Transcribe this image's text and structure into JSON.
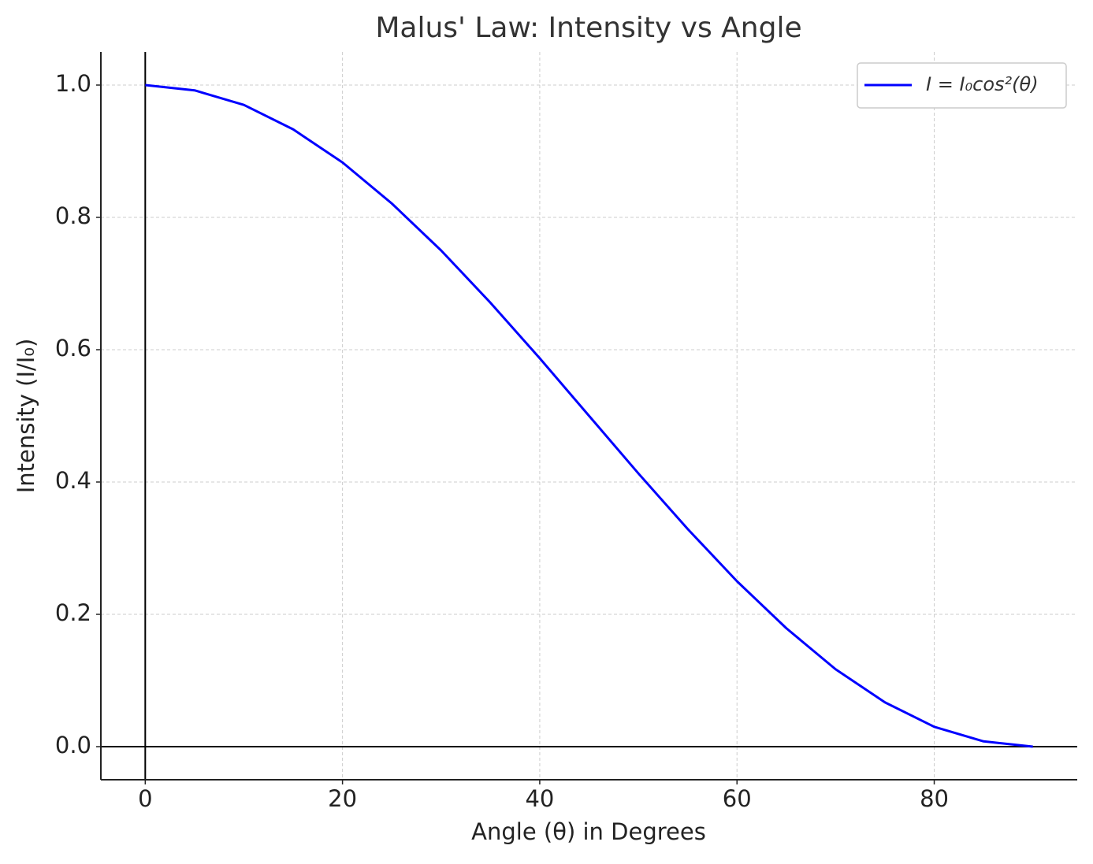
{
  "chart_data": {
    "type": "line",
    "title": "Malus' Law: Intensity vs Angle",
    "x_label": "Angle (θ) in Degrees",
    "y_label": "Intensity (I/I₀)",
    "x": [
      0,
      5,
      10,
      15,
      20,
      25,
      30,
      35,
      40,
      45,
      50,
      55,
      60,
      65,
      70,
      75,
      80,
      85,
      90
    ],
    "series": [
      {
        "name": "I = I₀cos²(θ)",
        "color": "#0000ff",
        "values": [
          1,
          0.992,
          0.97,
          0.933,
          0.883,
          0.821,
          0.75,
          0.671,
          0.587,
          0.5,
          0.413,
          0.329,
          0.25,
          0.179,
          0.117,
          0.067,
          0.03,
          0.008,
          0
        ]
      }
    ],
    "xlim": [
      -4.5,
      94.5
    ],
    "ylim": [
      -0.05,
      1.05
    ],
    "xticks": [
      0,
      20,
      40,
      60,
      80
    ],
    "yticks": [
      {
        "value": 0,
        "label": "0.0"
      },
      {
        "value": 0.2,
        "label": "0.2"
      },
      {
        "value": 0.4,
        "label": "0.4"
      },
      {
        "value": 0.6,
        "label": "0.6"
      },
      {
        "value": 0.8,
        "label": "0.8"
      },
      {
        "value": 1,
        "label": "1.0"
      }
    ],
    "axhline": 0,
    "axvline": 0,
    "grid": true,
    "legend": "upper right"
  }
}
